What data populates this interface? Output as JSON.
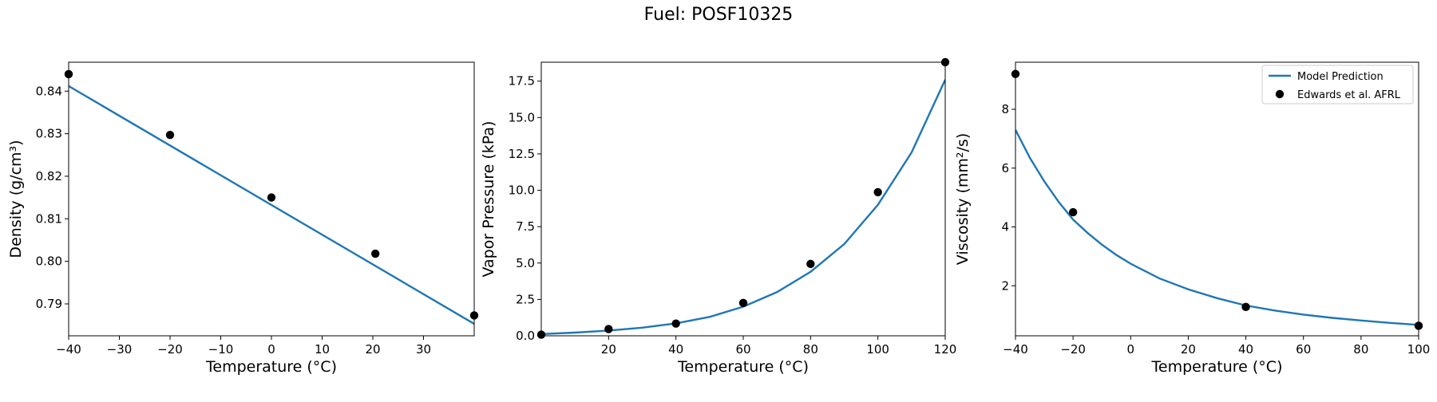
{
  "figure": {
    "suptitle": "Fuel: POSF10325"
  },
  "legend_labels": {
    "line": "Model Prediction",
    "points": "Edwards et al. AFRL"
  },
  "colors": {
    "model_line": "#1f77b4",
    "data_points": "#000000"
  },
  "chart_data": [
    {
      "type": "line",
      "xlabel": "Temperature (°C)",
      "ylabel": "Density (g/cm³)",
      "xlim": [
        -40,
        40
      ],
      "ylim": [
        0.7825,
        0.8468
      ],
      "xticks": [
        -40,
        -30,
        -20,
        -10,
        0,
        10,
        20,
        30
      ],
      "yticks": [
        0.79,
        0.8,
        0.81,
        0.82,
        0.83,
        0.84
      ],
      "ytick_decimals": 2,
      "series": [
        {
          "kind": "line",
          "x": [
            -40,
            40
          ],
          "y": [
            0.8412,
            0.7853
          ]
        },
        {
          "kind": "scatter",
          "x": [
            -40,
            -20,
            0,
            20.5,
            40
          ],
          "y": [
            0.844,
            0.8297,
            0.815,
            0.8018,
            0.7873
          ]
        }
      ],
      "legend": false
    },
    {
      "type": "line",
      "xlabel": "Temperature (°C)",
      "ylabel": "Vapor Pressure (kPa)",
      "xlim": [
        0,
        120
      ],
      "ylim": [
        0,
        18.8
      ],
      "xticks": [
        20,
        40,
        60,
        80,
        100,
        120
      ],
      "yticks": [
        0.0,
        2.5,
        5.0,
        7.5,
        10.0,
        12.5,
        15.0,
        17.5
      ],
      "ytick_decimals": 1,
      "series": [
        {
          "kind": "line",
          "x": [
            0,
            10,
            20,
            30,
            40,
            50,
            60,
            70,
            80,
            90,
            100,
            110,
            120
          ],
          "y": [
            0.12,
            0.22,
            0.36,
            0.56,
            0.85,
            1.3,
            2.0,
            3.0,
            4.4,
            6.3,
            9.0,
            12.6,
            17.6
          ]
        },
        {
          "kind": "scatter",
          "x": [
            0,
            20,
            40,
            60,
            80,
            100,
            120
          ],
          "y": [
            0.08,
            0.46,
            0.84,
            2.26,
            4.94,
            9.87,
            18.8
          ]
        }
      ],
      "legend": false
    },
    {
      "type": "line",
      "xlabel": "Temperature (°C)",
      "ylabel": "Viscosity (mm²/s)",
      "xlim": [
        -40,
        100
      ],
      "ylim": [
        0.3,
        9.6
      ],
      "xticks": [
        -40,
        -20,
        0,
        20,
        40,
        60,
        80,
        100
      ],
      "yticks": [
        2,
        4,
        6,
        8
      ],
      "ytick_decimals": 0,
      "series": [
        {
          "kind": "line",
          "x": [
            -40,
            -35,
            -30,
            -25,
            -20,
            -15,
            -10,
            -5,
            0,
            10,
            20,
            30,
            40,
            50,
            60,
            70,
            80,
            90,
            100
          ],
          "y": [
            7.3,
            6.35,
            5.55,
            4.85,
            4.25,
            3.8,
            3.4,
            3.05,
            2.75,
            2.25,
            1.88,
            1.58,
            1.33,
            1.16,
            1.02,
            0.91,
            0.82,
            0.74,
            0.67
          ]
        },
        {
          "kind": "scatter",
          "x": [
            -40,
            -20,
            40,
            100
          ],
          "y": [
            9.2,
            4.5,
            1.28,
            0.64
          ]
        }
      ],
      "legend": true,
      "legend_position": "top-right"
    }
  ]
}
